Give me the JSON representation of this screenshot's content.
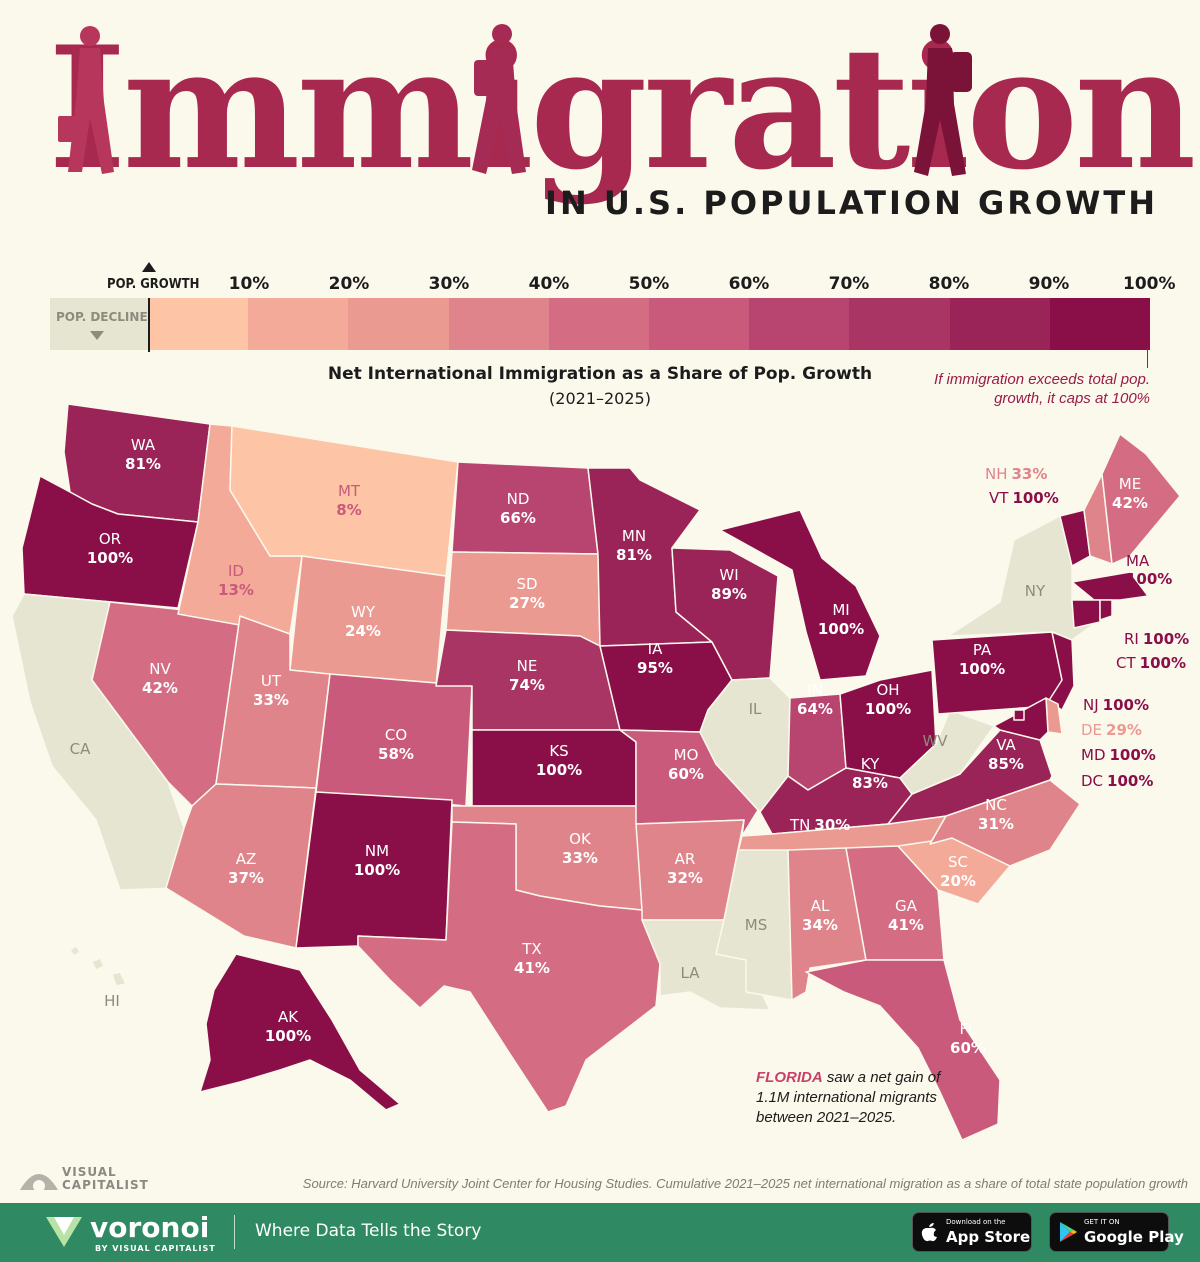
{
  "header": {
    "title": "Immigration",
    "subtitle": "IN U.S. POPULATION GROWTH"
  },
  "legend": {
    "pop_growth_label": "POP. GROWTH",
    "pop_decline_label": "POP. DECLINE",
    "ticks": [
      "10%",
      "20%",
      "30%",
      "40%",
      "50%",
      "60%",
      "70%",
      "80%",
      "90%",
      "100%"
    ],
    "decline_color": "#e6e5d2",
    "colors": [
      "#fdc4a6",
      "#f4aa99",
      "#eb9a91",
      "#e0848b",
      "#d46d83",
      "#c95a7c",
      "#b84570",
      "#a93564",
      "#9a2358",
      "#8a0f49"
    ]
  },
  "map_title": "Net International Immigration as a Share of Pop. Growth",
  "map_period": "(2021–2025)",
  "cap_note": "If immigration exceeds total pop. growth, it caps at 100%",
  "chart_data": {
    "type": "choropleth",
    "metric": "Net International Immigration as a Share of Pop. Growth",
    "unit": "%",
    "states": [
      {
        "abbr": "WA",
        "value": "81%"
      },
      {
        "abbr": "OR",
        "value": "100%"
      },
      {
        "abbr": "CA",
        "value": ""
      },
      {
        "abbr": "NV",
        "value": "42%"
      },
      {
        "abbr": "ID",
        "value": "13%"
      },
      {
        "abbr": "MT",
        "value": "8%"
      },
      {
        "abbr": "WY",
        "value": "24%"
      },
      {
        "abbr": "UT",
        "value": "33%"
      },
      {
        "abbr": "AZ",
        "value": "37%"
      },
      {
        "abbr": "CO",
        "value": "58%"
      },
      {
        "abbr": "NM",
        "value": "100%"
      },
      {
        "abbr": "ND",
        "value": "66%"
      },
      {
        "abbr": "SD",
        "value": "27%"
      },
      {
        "abbr": "NE",
        "value": "74%"
      },
      {
        "abbr": "KS",
        "value": "100%"
      },
      {
        "abbr": "OK",
        "value": "33%"
      },
      {
        "abbr": "TX",
        "value": "41%"
      },
      {
        "abbr": "MN",
        "value": "81%"
      },
      {
        "abbr": "IA",
        "value": "95%"
      },
      {
        "abbr": "MO",
        "value": "60%"
      },
      {
        "abbr": "AR",
        "value": "32%"
      },
      {
        "abbr": "LA",
        "value": ""
      },
      {
        "abbr": "WI",
        "value": "89%"
      },
      {
        "abbr": "IL",
        "value": ""
      },
      {
        "abbr": "MI",
        "value": "100%"
      },
      {
        "abbr": "IN",
        "value": "64%"
      },
      {
        "abbr": "OH",
        "value": "100%"
      },
      {
        "abbr": "KY",
        "value": "83%"
      },
      {
        "abbr": "TN",
        "value": "30%"
      },
      {
        "abbr": "MS",
        "value": ""
      },
      {
        "abbr": "AL",
        "value": "34%"
      },
      {
        "abbr": "GA",
        "value": "41%"
      },
      {
        "abbr": "FL",
        "value": "60%"
      },
      {
        "abbr": "SC",
        "value": "20%"
      },
      {
        "abbr": "NC",
        "value": "31%"
      },
      {
        "abbr": "VA",
        "value": "85%"
      },
      {
        "abbr": "WV",
        "value": ""
      },
      {
        "abbr": "PA",
        "value": "100%"
      },
      {
        "abbr": "NY",
        "value": ""
      },
      {
        "abbr": "ME",
        "value": "42%"
      },
      {
        "abbr": "NH",
        "value": "33%"
      },
      {
        "abbr": "VT",
        "value": "100%"
      },
      {
        "abbr": "MA",
        "value": "100%"
      },
      {
        "abbr": "RI",
        "value": "100%"
      },
      {
        "abbr": "CT",
        "value": "100%"
      },
      {
        "abbr": "NJ",
        "value": "100%"
      },
      {
        "abbr": "DE",
        "value": "29%"
      },
      {
        "abbr": "MD",
        "value": "100%"
      },
      {
        "abbr": "DC",
        "value": "100%"
      },
      {
        "abbr": "AK",
        "value": "100%"
      },
      {
        "abbr": "HI",
        "value": ""
      }
    ]
  },
  "florida_note": {
    "highlight": "FLORIDA",
    "text": "saw a net gain of 1.1M international migrants between 2021–2025."
  },
  "source": "Source: Harvard University Joint Center for Housing Studies. Cumulative 2021–2025 net international migration as a share of total state population growth",
  "footer": {
    "vc_logo_line1": "VISUAL",
    "vc_logo_line2": "CAPITALIST",
    "brand": "voronoi",
    "brand_sub": "BY VISUAL CAPITALIST",
    "tagline": "Where Data Tells the Story",
    "app_store_small": "Download on the",
    "app_store_big": "App Store",
    "google_play_small": "GET IT ON",
    "google_play_big": "Google Play"
  }
}
